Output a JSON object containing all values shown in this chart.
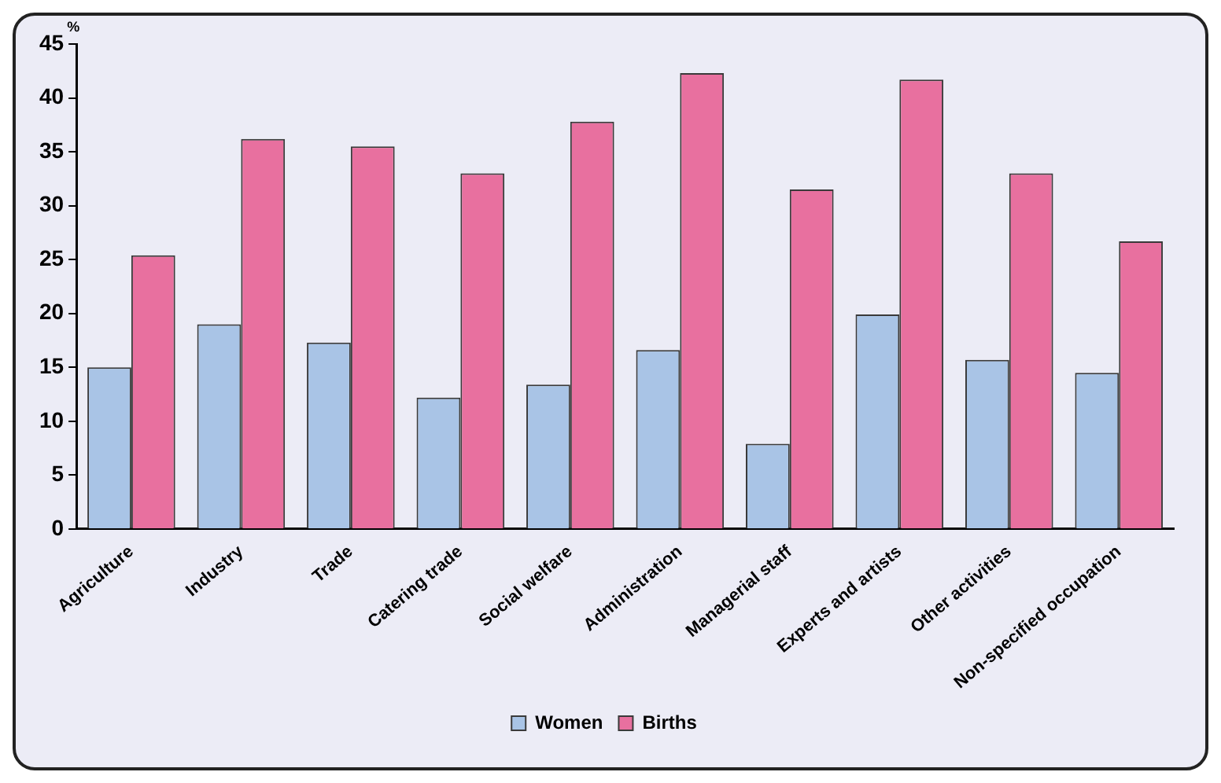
{
  "chart_data": {
    "type": "bar",
    "ylabel": "%",
    "categories": [
      "Agriculture",
      "Industry",
      "Trade",
      "Catering trade",
      "Social welfare",
      "Administration",
      "Managerial staff",
      "Experts and artists",
      "Other activities",
      "Non-specified occupation"
    ],
    "series": [
      {
        "name": "Women",
        "color": "#a9c4e6",
        "values": [
          15.0,
          19.0,
          17.3,
          12.2,
          13.4,
          16.6,
          7.9,
          19.9,
          15.7,
          14.5
        ]
      },
      {
        "name": "Births",
        "color": "#e8709f",
        "values": [
          25.4,
          36.2,
          35.5,
          33.0,
          37.8,
          42.3,
          31.5,
          41.7,
          33.0,
          26.7
        ]
      }
    ],
    "ylim": [
      0,
      45
    ],
    "yticks": [
      0,
      5,
      10,
      15,
      20,
      25,
      30,
      35,
      40,
      45
    ],
    "grid": false,
    "legend": "bottom"
  }
}
